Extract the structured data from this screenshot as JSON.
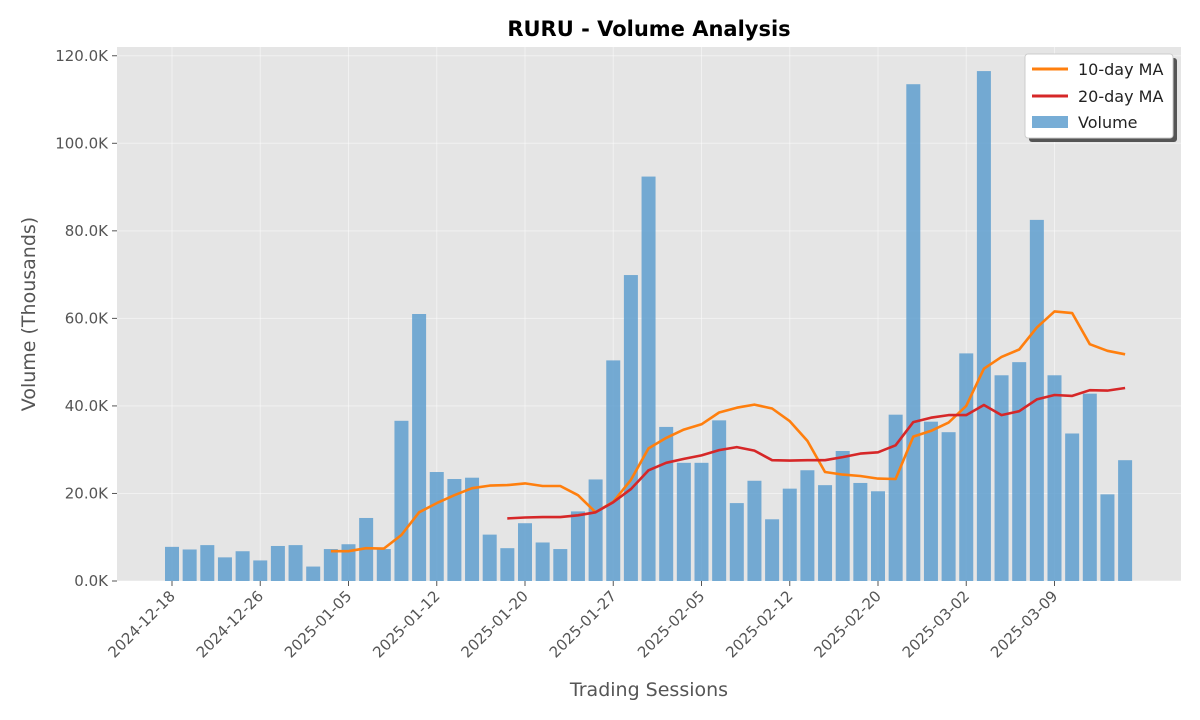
{
  "chart_data": {
    "type": "bar",
    "title": "RURU - Volume Analysis",
    "xlabel": "Trading Sessions",
    "ylabel": "Volume (Thousands)",
    "ylim": [
      0,
      122000
    ],
    "grid": true,
    "legend_position": "top-right",
    "x_tick_labels": [
      "2024-12-18",
      "2024-12-26",
      "2025-01-05",
      "2025-01-12",
      "2025-01-20",
      "2025-01-27",
      "2025-02-05",
      "2025-02-12",
      "2025-02-20",
      "2025-03-02",
      "2025-03-09"
    ],
    "x_tick_index": [
      0,
      5,
      10,
      15,
      20,
      25,
      30,
      35,
      40,
      45,
      50
    ],
    "y_ticks": [
      0,
      20000,
      40000,
      60000,
      80000,
      100000,
      120000
    ],
    "y_tick_labels": [
      "0.0K",
      "20.0K",
      "40.0K",
      "60.0K",
      "80.0K",
      "100.0K",
      "120.0K"
    ],
    "series": [
      {
        "name": "Volume",
        "type": "bar",
        "color": "#5f9fcf",
        "values": [
          7800,
          7200,
          8200,
          5400,
          6800,
          4700,
          8000,
          8200,
          3300,
          7300,
          8400,
          14400,
          7300,
          36600,
          61000,
          24900,
          23300,
          23600,
          10600,
          7500,
          13200,
          8800,
          7300,
          15900,
          23200,
          50400,
          69900,
          92400,
          35200,
          27000,
          27000,
          36700,
          17800,
          22900,
          14100,
          21100,
          25300,
          21900,
          29700,
          22400,
          20500,
          38000,
          113500,
          36400,
          34000,
          52000,
          116500,
          47000,
          50000,
          82500,
          47000,
          33700,
          42800,
          19800,
          27600
        ]
      },
      {
        "name": "10-day MA",
        "type": "line",
        "color": "#ff7f0e",
        "start_index": 9,
        "values": [
          6800,
          6800,
          7500,
          7400,
          10500,
          15700,
          17800,
          19600,
          21200,
          21800,
          21900,
          22300,
          21700,
          21700,
          19600,
          15700,
          18100,
          23100,
          30300,
          32700,
          34600,
          35800,
          38500,
          39600,
          40300,
          39400,
          36500,
          32000,
          24900,
          24300,
          24000,
          23400,
          23300,
          33000,
          34300,
          36200,
          40000,
          48500,
          51200,
          52900,
          57900,
          61600,
          61200,
          54100,
          52600,
          51800
        ]
      },
      {
        "name": "20-day MA",
        "type": "line",
        "color": "#d62728",
        "start_index": 19,
        "values": [
          14300,
          14500,
          14600,
          14600,
          15000,
          15700,
          18000,
          21000,
          25300,
          27000,
          27900,
          28700,
          29900,
          30600,
          29800,
          27600,
          27500,
          27600,
          27600,
          28300,
          29100,
          29400,
          31000,
          36300,
          37300,
          37900,
          37900,
          40200,
          37900,
          38800,
          41500,
          42500,
          42300,
          43600,
          43500,
          44100
        ]
      }
    ]
  }
}
